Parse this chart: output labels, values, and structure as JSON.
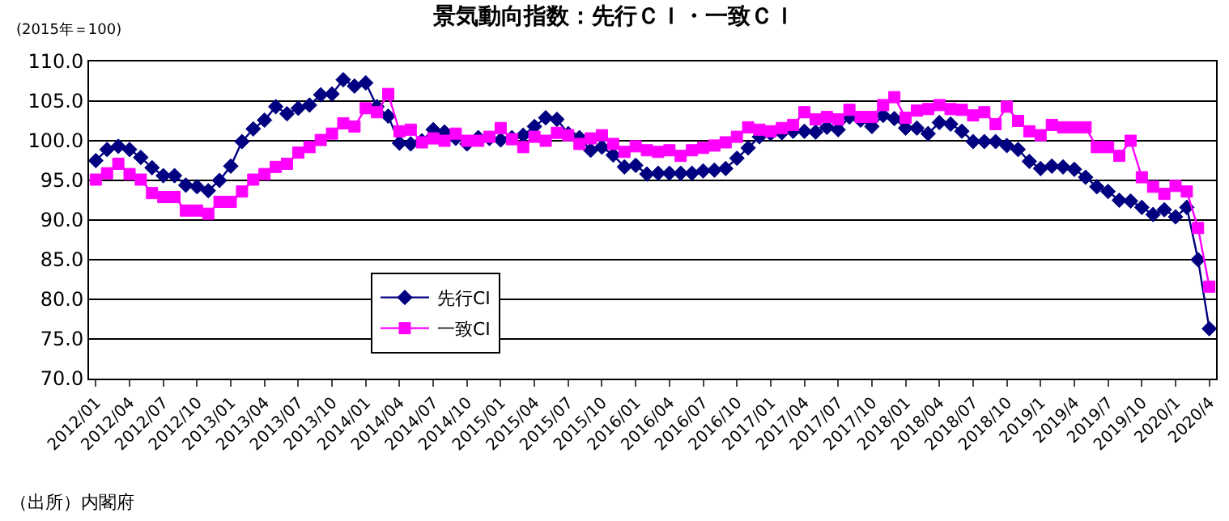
{
  "chart_data": {
    "type": "line",
    "title": "景気動向指数：先行ＣＩ・一致ＣＩ",
    "categories": [
      "2012/01",
      null,
      null,
      "2012/04",
      null,
      null,
      "2012/07",
      null,
      null,
      "2012/10",
      null,
      null,
      "2013/01",
      null,
      null,
      "2013/04",
      null,
      null,
      "2013/07",
      null,
      null,
      "2013/10",
      null,
      null,
      "2014/01",
      null,
      null,
      "2014/04",
      null,
      null,
      "2014/07",
      null,
      null,
      "2014/10",
      null,
      null,
      "2015/01",
      null,
      null,
      "2015/04",
      null,
      null,
      "2015/07",
      null,
      null,
      "2015/10",
      null,
      null,
      "2016/01",
      null,
      null,
      "2016/04",
      null,
      null,
      "2016/07",
      null,
      null,
      "2016/10",
      null,
      null,
      "2017/01",
      null,
      null,
      "2017/04",
      null,
      null,
      "2017/07",
      null,
      null,
      "2017/10",
      null,
      null,
      "2018/01",
      null,
      null,
      "2018/04",
      null,
      null,
      "2018/07",
      null,
      null,
      "2018/10",
      null,
      null,
      "2019/1",
      null,
      null,
      "2019/4",
      null,
      null,
      "2019/7",
      null,
      null,
      "2019/10",
      null,
      null,
      "2020/1",
      null,
      null,
      "2020/4"
    ],
    "series": [
      {
        "name": "先行CI",
        "color": "#000080",
        "marker": "diamond",
        "values": [
          97.5,
          98.9,
          99.3,
          98.9,
          97.9,
          96.6,
          95.6,
          95.6,
          94.4,
          94.2,
          93.7,
          95.0,
          96.8,
          99.9,
          101.5,
          102.6,
          104.3,
          103.4,
          104.1,
          104.5,
          105.8,
          105.9,
          107.7,
          106.9,
          107.3,
          104.3,
          103.1,
          99.7,
          99.6,
          100.0,
          101.4,
          101.1,
          100.3,
          99.6,
          100.4,
          100.3,
          100.1,
          100.4,
          100.7,
          101.8,
          102.9,
          102.7,
          100.9,
          100.4,
          98.8,
          99.2,
          98.2,
          96.7,
          96.9,
          95.8,
          95.9,
          95.9,
          95.9,
          95.9,
          96.2,
          96.3,
          96.5,
          97.8,
          99.1,
          100.5,
          100.9,
          101.0,
          101.2,
          101.2,
          101.1,
          101.7,
          101.4,
          103.0,
          102.6,
          101.8,
          103.2,
          102.8,
          101.6,
          101.6,
          100.9,
          102.3,
          102.1,
          101.2,
          99.9,
          99.9,
          99.9,
          99.4,
          98.9,
          97.4,
          96.5,
          96.8,
          96.7,
          96.4,
          95.4,
          94.2,
          93.6,
          92.5,
          92.4,
          91.6,
          90.7,
          91.3,
          90.4,
          91.6,
          85.0,
          76.3
        ]
      },
      {
        "name": "一致CI",
        "color": "#ff00ff",
        "marker": "square",
        "values": [
          95.1,
          95.9,
          97.1,
          95.8,
          95.1,
          93.4,
          92.9,
          92.9,
          91.2,
          91.2,
          90.8,
          92.3,
          92.3,
          93.6,
          95.1,
          95.8,
          96.7,
          97.1,
          98.5,
          99.2,
          100.1,
          100.9,
          102.2,
          101.8,
          104.1,
          103.6,
          105.9,
          101.2,
          101.4,
          99.8,
          100.3,
          100.0,
          100.9,
          100.0,
          100.0,
          100.5,
          101.6,
          100.2,
          99.2,
          100.5,
          100.0,
          101.0,
          100.7,
          99.6,
          100.3,
          100.7,
          99.6,
          98.6,
          99.3,
          98.8,
          98.6,
          98.8,
          98.1,
          98.8,
          99.1,
          99.4,
          99.8,
          100.5,
          101.7,
          101.4,
          101.2,
          101.6,
          102.0,
          103.6,
          102.7,
          103.0,
          102.7,
          103.9,
          103.0,
          103.0,
          104.5,
          105.5,
          102.9,
          103.8,
          104.0,
          104.5,
          104.0,
          103.9,
          103.2,
          103.6,
          102.1,
          104.3,
          102.5,
          101.2,
          100.7,
          102.0,
          101.7,
          101.7,
          101.7,
          99.2,
          99.2,
          98.1,
          100.0,
          95.4,
          94.2,
          93.3,
          94.3,
          93.6,
          89.0,
          81.6
        ]
      }
    ],
    "ylim": [
      70,
      110
    ],
    "yticks": [
      {
        "value": 70,
        "label": "70.0"
      },
      {
        "value": 75,
        "label": "75.0"
      },
      {
        "value": 80,
        "label": "80.0"
      },
      {
        "value": 85,
        "label": "85.0"
      },
      {
        "value": 90,
        "label": "90.0"
      },
      {
        "value": 95,
        "label": "95.0"
      },
      {
        "value": 100,
        "label": "100.0"
      },
      {
        "value": 105,
        "label": "105.0"
      },
      {
        "value": 110,
        "label": "110.0"
      }
    ],
    "grid": "y",
    "legend": "bottom left",
    "line_style": "solid",
    "annotations": [
      "(2015年＝100)",
      "（出所）内閣府"
    ]
  }
}
